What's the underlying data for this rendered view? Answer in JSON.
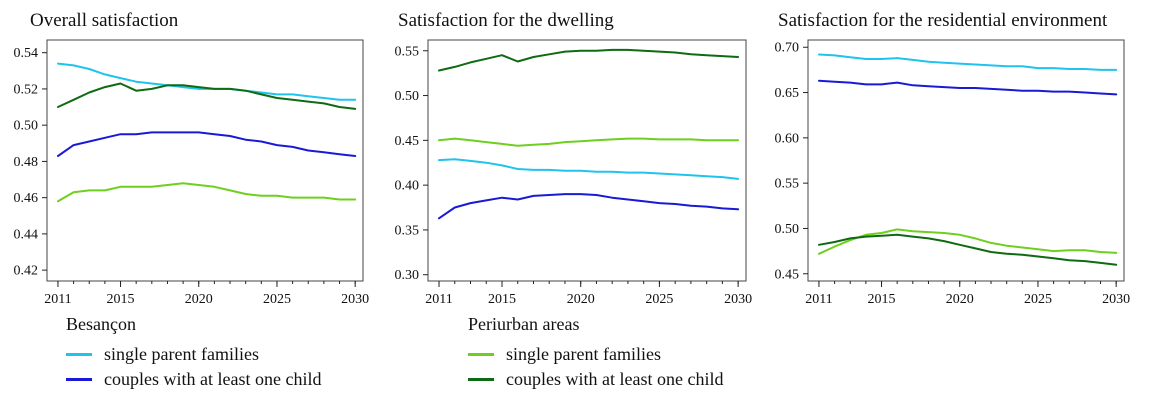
{
  "colors": {
    "besancon_single": "#1fc3ee",
    "besancon_couples": "#1a1ad6",
    "periurban_single": "#6fcf1f",
    "periurban_couples": "#0f6b12",
    "axis": "#222222",
    "frame": "#444444"
  },
  "legend": {
    "groups": [
      {
        "title": "Besançon",
        "items": [
          {
            "label": "single parent families",
            "color_key": "besancon_single"
          },
          {
            "label": "couples with at least one child",
            "color_key": "besancon_couples"
          }
        ]
      },
      {
        "title": "Periurban areas",
        "items": [
          {
            "label": "single parent families",
            "color_key": "periurban_single"
          },
          {
            "label": "couples with at least one child",
            "color_key": "periurban_couples"
          }
        ]
      }
    ]
  },
  "chart_data": [
    {
      "type": "line",
      "title": "Overall satisfaction",
      "x": [
        2011,
        2012,
        2013,
        2014,
        2015,
        2016,
        2017,
        2018,
        2019,
        2020,
        2021,
        2022,
        2023,
        2024,
        2025,
        2026,
        2027,
        2028,
        2029,
        2030
      ],
      "xticks": [
        "2011",
        "2015",
        "2020",
        "2025",
        "2030"
      ],
      "xtick_values": [
        2011,
        2015,
        2020,
        2025,
        2030
      ],
      "xlim": [
        2010.3,
        2030.5
      ],
      "ylim": [
        0.414,
        0.547
      ],
      "yticks": [
        "0.42",
        "0.44",
        "0.46",
        "0.48",
        "0.50",
        "0.52",
        "0.54"
      ],
      "ytick_values": [
        0.42,
        0.44,
        0.46,
        0.48,
        0.5,
        0.52,
        0.54
      ],
      "series": [
        {
          "color_key": "besancon_single",
          "values": [
            0.534,
            0.533,
            0.531,
            0.528,
            0.526,
            0.524,
            0.523,
            0.522,
            0.521,
            0.52,
            0.52,
            0.52,
            0.519,
            0.518,
            0.517,
            0.517,
            0.516,
            0.515,
            0.514,
            0.514
          ]
        },
        {
          "color_key": "besancon_couples",
          "values": [
            0.483,
            0.489,
            0.491,
            0.493,
            0.495,
            0.495,
            0.496,
            0.496,
            0.496,
            0.496,
            0.495,
            0.494,
            0.492,
            0.491,
            0.489,
            0.488,
            0.486,
            0.485,
            0.484,
            0.483
          ]
        },
        {
          "color_key": "periurban_single",
          "values": [
            0.458,
            0.463,
            0.464,
            0.464,
            0.466,
            0.466,
            0.466,
            0.467,
            0.468,
            0.467,
            0.466,
            0.464,
            0.462,
            0.461,
            0.461,
            0.46,
            0.46,
            0.46,
            0.459,
            0.459
          ]
        },
        {
          "color_key": "periurban_couples",
          "values": [
            0.51,
            0.514,
            0.518,
            0.521,
            0.523,
            0.519,
            0.52,
            0.522,
            0.522,
            0.521,
            0.52,
            0.52,
            0.519,
            0.517,
            0.515,
            0.514,
            0.513,
            0.512,
            0.51,
            0.509
          ]
        }
      ]
    },
    {
      "type": "line",
      "title": "Satisfaction for the dwelling",
      "x": [
        2011,
        2012,
        2013,
        2014,
        2015,
        2016,
        2017,
        2018,
        2019,
        2020,
        2021,
        2022,
        2023,
        2024,
        2025,
        2026,
        2027,
        2028,
        2029,
        2030
      ],
      "xticks": [
        "2011",
        "2015",
        "2020",
        "2025",
        "2030"
      ],
      "xtick_values": [
        2011,
        2015,
        2020,
        2025,
        2030
      ],
      "xlim": [
        2010.3,
        2030.5
      ],
      "ylim": [
        0.293,
        0.562
      ],
      "yticks": [
        "0.30",
        "0.35",
        "0.40",
        "0.45",
        "0.50",
        "0.55"
      ],
      "ytick_values": [
        0.3,
        0.35,
        0.4,
        0.45,
        0.5,
        0.55
      ],
      "series": [
        {
          "color_key": "besancon_single",
          "values": [
            0.428,
            0.429,
            0.427,
            0.425,
            0.422,
            0.418,
            0.417,
            0.417,
            0.416,
            0.416,
            0.415,
            0.415,
            0.414,
            0.414,
            0.413,
            0.412,
            0.411,
            0.41,
            0.409,
            0.407
          ]
        },
        {
          "color_key": "besancon_couples",
          "values": [
            0.363,
            0.375,
            0.38,
            0.383,
            0.386,
            0.384,
            0.388,
            0.389,
            0.39,
            0.39,
            0.389,
            0.386,
            0.384,
            0.382,
            0.38,
            0.379,
            0.377,
            0.376,
            0.374,
            0.373
          ]
        },
        {
          "color_key": "periurban_single",
          "values": [
            0.45,
            0.452,
            0.45,
            0.448,
            0.446,
            0.444,
            0.445,
            0.446,
            0.448,
            0.449,
            0.45,
            0.451,
            0.452,
            0.452,
            0.451,
            0.451,
            0.451,
            0.45,
            0.45,
            0.45
          ]
        },
        {
          "color_key": "periurban_couples",
          "values": [
            0.528,
            0.532,
            0.537,
            0.541,
            0.545,
            0.538,
            0.543,
            0.546,
            0.549,
            0.55,
            0.55,
            0.551,
            0.551,
            0.55,
            0.549,
            0.548,
            0.546,
            0.545,
            0.544,
            0.543
          ]
        }
      ]
    },
    {
      "type": "line",
      "title": "Satisfaction for the residential environment",
      "x": [
        2011,
        2012,
        2013,
        2014,
        2015,
        2016,
        2017,
        2018,
        2019,
        2020,
        2021,
        2022,
        2023,
        2024,
        2025,
        2026,
        2027,
        2028,
        2029,
        2030
      ],
      "xticks": [
        "2011",
        "2015",
        "2020",
        "2025",
        "2030"
      ],
      "xtick_values": [
        2011,
        2015,
        2020,
        2025,
        2030
      ],
      "xlim": [
        2010.3,
        2030.5
      ],
      "ylim": [
        0.442,
        0.708
      ],
      "yticks": [
        "0.45",
        "0.50",
        "0.55",
        "0.60",
        "0.65",
        "0.70"
      ],
      "ytick_values": [
        0.45,
        0.5,
        0.55,
        0.6,
        0.65,
        0.7
      ],
      "series": [
        {
          "color_key": "besancon_single",
          "values": [
            0.692,
            0.691,
            0.689,
            0.687,
            0.687,
            0.688,
            0.686,
            0.684,
            0.683,
            0.682,
            0.681,
            0.68,
            0.679,
            0.679,
            0.677,
            0.677,
            0.676,
            0.676,
            0.675,
            0.675
          ]
        },
        {
          "color_key": "besancon_couples",
          "values": [
            0.663,
            0.662,
            0.661,
            0.659,
            0.659,
            0.661,
            0.658,
            0.657,
            0.656,
            0.655,
            0.655,
            0.654,
            0.653,
            0.652,
            0.652,
            0.651,
            0.651,
            0.65,
            0.649,
            0.648
          ]
        },
        {
          "color_key": "periurban_single",
          "values": [
            0.472,
            0.48,
            0.487,
            0.493,
            0.495,
            0.499,
            0.497,
            0.496,
            0.495,
            0.493,
            0.489,
            0.484,
            0.481,
            0.479,
            0.477,
            0.475,
            0.476,
            0.476,
            0.474,
            0.473
          ]
        },
        {
          "color_key": "periurban_couples",
          "values": [
            0.482,
            0.485,
            0.489,
            0.491,
            0.492,
            0.493,
            0.491,
            0.489,
            0.486,
            0.482,
            0.478,
            0.474,
            0.472,
            0.471,
            0.469,
            0.467,
            0.465,
            0.464,
            0.462,
            0.46
          ]
        }
      ]
    }
  ]
}
